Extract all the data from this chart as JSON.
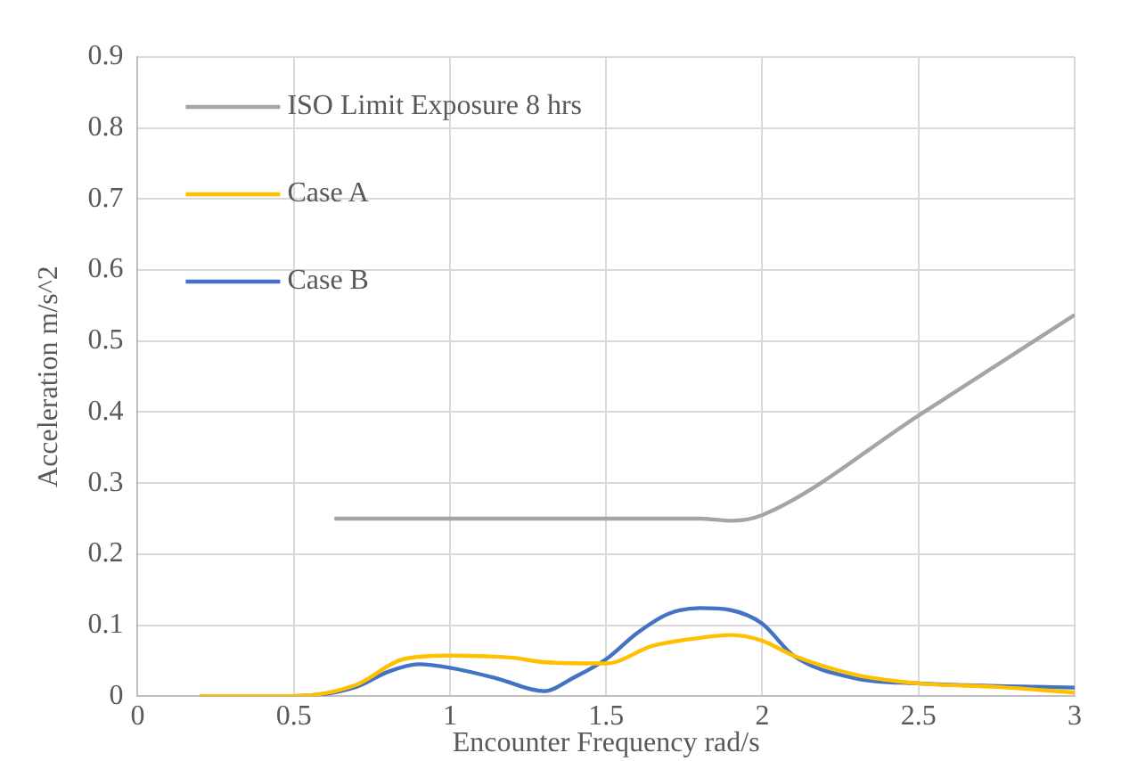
{
  "chart_data": {
    "type": "line",
    "xlabel": "Encounter Frequency rad/s",
    "ylabel": "Acceleration m/s^2",
    "xlim": [
      0,
      3
    ],
    "xticks": [
      0,
      0.5,
      1,
      1.5,
      2,
      2.5,
      3
    ],
    "ylim": [
      0,
      0.9
    ],
    "yticks": [
      0,
      0.1,
      0.2,
      0.3,
      0.4,
      0.5,
      0.6,
      0.7,
      0.8,
      0.9
    ],
    "grid": true,
    "legend": "top left",
    "marker": "none",
    "line_style": "solid",
    "series": [
      {
        "name": "ISO Limit Exposure 8 hrs",
        "color": "#a5a5a5",
        "x": [
          0.63,
          1.0,
          1.5,
          1.8,
          1.9,
          2.0,
          2.5,
          3.0
        ],
        "values": [
          0.25,
          0.25,
          0.25,
          0.25,
          0.247,
          0.255,
          0.395,
          0.537
        ]
      },
      {
        "name": "Case A",
        "color": "#ffc000",
        "x": [
          0.2,
          0.5,
          0.7,
          0.85,
          1.0,
          1.2,
          1.3,
          1.5,
          1.65,
          1.8,
          1.9,
          2.0,
          2.1,
          2.3,
          2.5,
          2.75,
          3.0
        ],
        "values": [
          0,
          0,
          0.016,
          0.052,
          0.057,
          0.054,
          0.048,
          0.046,
          0.071,
          0.082,
          0.086,
          0.078,
          0.057,
          0.03,
          0.018,
          0.013,
          0.005
        ]
      },
      {
        "name": "Case B",
        "color": "#4472c4",
        "x": [
          0.2,
          0.5,
          0.7,
          0.8,
          0.9,
          1.0,
          1.15,
          1.3,
          1.4,
          1.5,
          1.6,
          1.7,
          1.8,
          1.9,
          2.0,
          2.1,
          2.3,
          2.5,
          3.0
        ],
        "values": [
          0,
          0,
          0.013,
          0.034,
          0.045,
          0.04,
          0.025,
          0.007,
          0.027,
          0.052,
          0.089,
          0.116,
          0.124,
          0.121,
          0.102,
          0.057,
          0.025,
          0.018,
          0.012
        ]
      }
    ]
  }
}
